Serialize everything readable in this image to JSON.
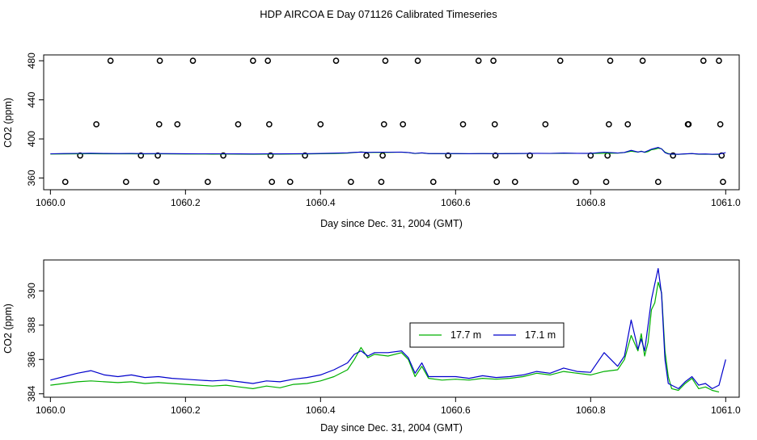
{
  "figure": {
    "title": "HDP AIRCOA E  Day 071126  Calibrated Timeseries"
  },
  "colors": {
    "series_1": "#00b000",
    "series_2": "#0000cc",
    "points": "#000000",
    "axes": "#000000"
  },
  "chart_data": [
    {
      "type": "line",
      "xlabel": "Day since Dec. 31, 2004 (GMT)",
      "ylabel": "CO2 (ppm)",
      "xlim": [
        1059.99,
        1061.02
      ],
      "ylim": [
        348,
        486
      ],
      "xticks": [
        1060.0,
        1060.2,
        1060.4,
        1060.6,
        1060.8,
        1061.0
      ],
      "xtick_labels": [
        "1060.0",
        "1060.2",
        "1060.4",
        "1060.6",
        "1060.8",
        "1061.0"
      ],
      "yticks": [
        360,
        400,
        440,
        480
      ],
      "ytick_labels": [
        "360",
        "400",
        "440",
        "480"
      ],
      "grid": false,
      "legend": false,
      "calibration_points": [
        [
          1060.022,
          356
        ],
        [
          1060.044,
          383
        ],
        [
          1060.068,
          415
        ],
        [
          1060.089,
          480
        ],
        [
          1060.112,
          356
        ],
        [
          1060.134,
          383
        ],
        [
          1060.157,
          356
        ],
        [
          1060.159,
          383
        ],
        [
          1060.161,
          415
        ],
        [
          1060.162,
          480
        ],
        [
          1060.188,
          415
        ],
        [
          1060.211,
          480
        ],
        [
          1060.233,
          356
        ],
        [
          1060.256,
          383
        ],
        [
          1060.278,
          415
        ],
        [
          1060.3,
          480
        ],
        [
          1060.322,
          480
        ],
        [
          1060.324,
          415
        ],
        [
          1060.326,
          383
        ],
        [
          1060.328,
          356
        ],
        [
          1060.355,
          356
        ],
        [
          1060.377,
          383
        ],
        [
          1060.4,
          415
        ],
        [
          1060.423,
          480
        ],
        [
          1060.445,
          356
        ],
        [
          1060.468,
          383
        ],
        [
          1060.49,
          356
        ],
        [
          1060.492,
          383
        ],
        [
          1060.494,
          415
        ],
        [
          1060.496,
          480
        ],
        [
          1060.522,
          415
        ],
        [
          1060.544,
          480
        ],
        [
          1060.567,
          356
        ],
        [
          1060.589,
          383
        ],
        [
          1060.611,
          415
        ],
        [
          1060.634,
          480
        ],
        [
          1060.656,
          480
        ],
        [
          1060.658,
          415
        ],
        [
          1060.659,
          383
        ],
        [
          1060.661,
          356
        ],
        [
          1060.688,
          356
        ],
        [
          1060.71,
          383
        ],
        [
          1060.733,
          415
        ],
        [
          1060.755,
          480
        ],
        [
          1060.778,
          356
        ],
        [
          1060.8,
          383
        ],
        [
          1060.823,
          356
        ],
        [
          1060.825,
          383
        ],
        [
          1060.827,
          415
        ],
        [
          1060.829,
          480
        ],
        [
          1060.855,
          415
        ],
        [
          1060.877,
          480
        ],
        [
          1060.9,
          356
        ],
        [
          1060.922,
          383
        ],
        [
          1060.944,
          415
        ],
        [
          1060.945,
          415
        ],
        [
          1060.967,
          480
        ],
        [
          1060.99,
          480
        ],
        [
          1060.992,
          415
        ],
        [
          1060.994,
          383
        ],
        [
          1060.996,
          356
        ]
      ]
    },
    {
      "type": "line",
      "xlabel": "Day since Dec. 31, 2004 (GMT)",
      "ylabel": "CO2 (ppm)",
      "xlim": [
        1059.99,
        1061.02
      ],
      "ylim": [
        383.8,
        391.8
      ],
      "xticks": [
        1060.0,
        1060.2,
        1060.4,
        1060.6,
        1060.8,
        1061.0
      ],
      "xtick_labels": [
        "1060.0",
        "1060.2",
        "1060.4",
        "1060.6",
        "1060.8",
        "1061.0"
      ],
      "yticks": [
        384,
        386,
        388,
        390
      ],
      "ytick_labels": [
        "384",
        "386",
        "388",
        "390"
      ],
      "grid": false,
      "legend": "center",
      "series": [
        {
          "name": "17.7 m",
          "x": [
            1060.0,
            1060.02,
            1060.04,
            1060.06,
            1060.08,
            1060.1,
            1060.12,
            1060.14,
            1060.16,
            1060.18,
            1060.2,
            1060.22,
            1060.24,
            1060.26,
            1060.28,
            1060.3,
            1060.32,
            1060.34,
            1060.36,
            1060.38,
            1060.4,
            1060.42,
            1060.44,
            1060.45,
            1060.46,
            1060.47,
            1060.48,
            1060.5,
            1060.52,
            1060.53,
            1060.54,
            1060.55,
            1060.56,
            1060.58,
            1060.6,
            1060.62,
            1060.64,
            1060.66,
            1060.68,
            1060.7,
            1060.72,
            1060.74,
            1060.76,
            1060.78,
            1060.8,
            1060.82,
            1060.84,
            1060.85,
            1060.86,
            1060.87,
            1060.875,
            1060.88,
            1060.885,
            1060.89,
            1060.895,
            1060.9,
            1060.905,
            1060.91,
            1060.915,
            1060.92,
            1060.93,
            1060.94,
            1060.95,
            1060.96,
            1060.97,
            1060.98,
            1060.99
          ],
          "y": [
            384.5,
            384.6,
            384.7,
            384.75,
            384.7,
            384.65,
            384.7,
            384.6,
            384.65,
            384.6,
            384.55,
            384.5,
            384.45,
            384.5,
            384.4,
            384.3,
            384.45,
            384.35,
            384.55,
            384.6,
            384.75,
            385.0,
            385.4,
            386.0,
            386.7,
            386.1,
            386.3,
            386.2,
            386.4,
            386.0,
            385.0,
            385.6,
            384.9,
            384.8,
            384.85,
            384.8,
            384.9,
            384.85,
            384.9,
            385.0,
            385.2,
            385.1,
            385.3,
            385.2,
            385.1,
            385.3,
            385.4,
            386.0,
            387.4,
            386.5,
            387.5,
            386.2,
            387.0,
            388.9,
            389.3,
            390.5,
            389.9,
            386.5,
            385.0,
            384.3,
            384.2,
            384.6,
            384.9,
            384.3,
            384.4,
            384.2,
            384.1
          ]
        },
        {
          "name": "17.1 m",
          "x": [
            1060.0,
            1060.02,
            1060.04,
            1060.06,
            1060.08,
            1060.1,
            1060.12,
            1060.14,
            1060.16,
            1060.18,
            1060.2,
            1060.22,
            1060.24,
            1060.26,
            1060.28,
            1060.3,
            1060.32,
            1060.34,
            1060.36,
            1060.38,
            1060.4,
            1060.42,
            1060.44,
            1060.45,
            1060.46,
            1060.47,
            1060.48,
            1060.5,
            1060.52,
            1060.53,
            1060.54,
            1060.55,
            1060.56,
            1060.58,
            1060.6,
            1060.62,
            1060.64,
            1060.66,
            1060.68,
            1060.7,
            1060.72,
            1060.74,
            1060.76,
            1060.78,
            1060.8,
            1060.82,
            1060.84,
            1060.85,
            1060.86,
            1060.87,
            1060.875,
            1060.88,
            1060.885,
            1060.89,
            1060.895,
            1060.9,
            1060.905,
            1060.91,
            1060.915,
            1060.92,
            1060.93,
            1060.94,
            1060.95,
            1060.96,
            1060.97,
            1060.98,
            1060.99,
            1061.0
          ],
          "y": [
            384.8,
            385.0,
            385.2,
            385.35,
            385.1,
            385.0,
            385.1,
            384.95,
            385.0,
            384.9,
            384.85,
            384.8,
            384.75,
            384.8,
            384.7,
            384.6,
            384.75,
            384.7,
            384.85,
            384.95,
            385.1,
            385.4,
            385.8,
            386.3,
            386.5,
            386.2,
            386.4,
            386.4,
            386.5,
            386.1,
            385.2,
            385.8,
            385.0,
            385.0,
            385.0,
            384.9,
            385.05,
            384.95,
            385.0,
            385.1,
            385.3,
            385.2,
            385.5,
            385.3,
            385.25,
            386.4,
            385.6,
            386.2,
            388.3,
            386.6,
            387.2,
            386.5,
            388.0,
            389.5,
            390.4,
            391.3,
            389.8,
            386.0,
            384.6,
            384.5,
            384.3,
            384.7,
            385.0,
            384.5,
            384.6,
            384.3,
            384.5,
            386.0
          ]
        }
      ]
    }
  ]
}
